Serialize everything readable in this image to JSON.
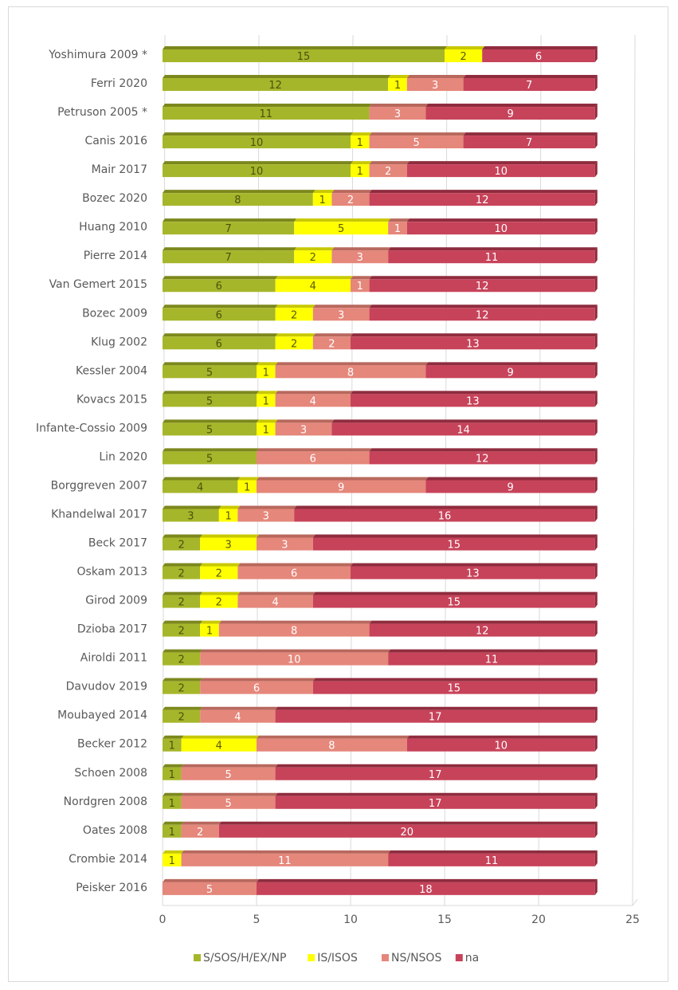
{
  "chart_data": {
    "type": "bar",
    "orientation": "horizontal",
    "stacked": true,
    "title": "",
    "xlabel": "",
    "ylabel": "",
    "xlim": [
      0,
      25
    ],
    "xticks": [
      0,
      5,
      10,
      15,
      20,
      25
    ],
    "grid": true,
    "legend_position": "bottom",
    "categories": [
      "Yoshimura 2009 *",
      "Ferri 2020",
      "Petruson 2005 *",
      "Canis 2016",
      "Mair 2017",
      "Bozec 2020",
      "Huang 2010",
      "Pierre 2014",
      "Van Gemert 2015",
      "Bozec 2009",
      "Klug 2002",
      "Kessler 2004",
      "Kovacs 2015",
      "Infante-Cossio 2009",
      "Lin 2020",
      "Borggreven 2007",
      "Khandelwal 2017",
      "Beck 2017",
      "Oskam 2013",
      "Girod 2009",
      "Dzioba 2017",
      "Airoldi 2011",
      "Davudov 2019",
      "Moubayed 2014",
      "Becker 2012",
      "Schoen 2008",
      "Nordgren 2008",
      "Oates 2008",
      "Crombie 2014",
      "Peisker 2016"
    ],
    "series": [
      {
        "name": "S/SOS/H/EX/NP",
        "color": "#a6b62a",
        "top": "#7c881c",
        "text": "#4a5210",
        "values": [
          15,
          12,
          11,
          10,
          10,
          8,
          7,
          7,
          6,
          6,
          6,
          5,
          5,
          5,
          5,
          4,
          3,
          2,
          2,
          2,
          2,
          2,
          2,
          2,
          1,
          1,
          1,
          1,
          0,
          0
        ]
      },
      {
        "name": "IS/ISOS",
        "color": "#ffff00",
        "top": "#c8c800",
        "text": "#5a5a00",
        "values": [
          2,
          1,
          0,
          1,
          1,
          1,
          5,
          2,
          4,
          2,
          2,
          1,
          1,
          1,
          0,
          1,
          1,
          3,
          2,
          2,
          1,
          0,
          0,
          0,
          4,
          0,
          0,
          0,
          1,
          0
        ]
      },
      {
        "name": "NS/NSOS",
        "color": "#e5877b",
        "top": "#b8685d",
        "text": "#ffffff",
        "values": [
          0,
          3,
          3,
          5,
          2,
          2,
          1,
          3,
          1,
          3,
          2,
          8,
          4,
          3,
          6,
          9,
          3,
          3,
          6,
          4,
          8,
          10,
          6,
          4,
          8,
          5,
          5,
          2,
          11,
          5
        ]
      },
      {
        "name": "na",
        "color": "#c7435a",
        "top": "#8f2c3e",
        "text": "#ffffff",
        "values": [
          6,
          7,
          9,
          7,
          10,
          12,
          10,
          11,
          12,
          12,
          13,
          9,
          13,
          14,
          12,
          9,
          16,
          15,
          13,
          15,
          12,
          11,
          15,
          17,
          10,
          17,
          17,
          20,
          11,
          18
        ]
      }
    ]
  }
}
